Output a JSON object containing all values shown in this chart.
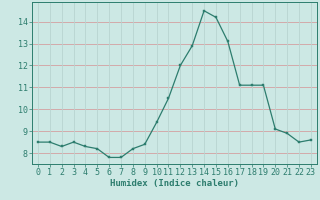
{
  "x": [
    0,
    1,
    2,
    3,
    4,
    5,
    6,
    7,
    8,
    9,
    10,
    11,
    12,
    13,
    14,
    15,
    16,
    17,
    18,
    19,
    20,
    21,
    22,
    23
  ],
  "y": [
    8.5,
    8.5,
    8.3,
    8.5,
    8.3,
    8.2,
    7.8,
    7.8,
    8.2,
    8.4,
    9.4,
    10.5,
    12.0,
    12.9,
    14.5,
    14.2,
    13.1,
    11.1,
    11.1,
    11.1,
    9.1,
    8.9,
    8.5,
    8.6
  ],
  "xlabel": "Humidex (Indice chaleur)",
  "ylim": [
    7.5,
    14.9
  ],
  "xlim": [
    -0.5,
    23.5
  ],
  "yticks": [
    8,
    9,
    10,
    11,
    12,
    13,
    14
  ],
  "xticks": [
    0,
    1,
    2,
    3,
    4,
    5,
    6,
    7,
    8,
    9,
    10,
    11,
    12,
    13,
    14,
    15,
    16,
    17,
    18,
    19,
    20,
    21,
    22,
    23
  ],
  "line_color": "#2d7d6e",
  "marker_color": "#2d7d6e",
  "bg_color": "#cce8e4",
  "grid_color_h": "#d4a0a0",
  "grid_color_v": "#b8d4d0",
  "axis_color": "#2d7d6e",
  "tick_color": "#2d7d6e",
  "label_color": "#2d7d6e",
  "xlabel_fontsize": 6.5,
  "tick_fontsize": 6.0
}
